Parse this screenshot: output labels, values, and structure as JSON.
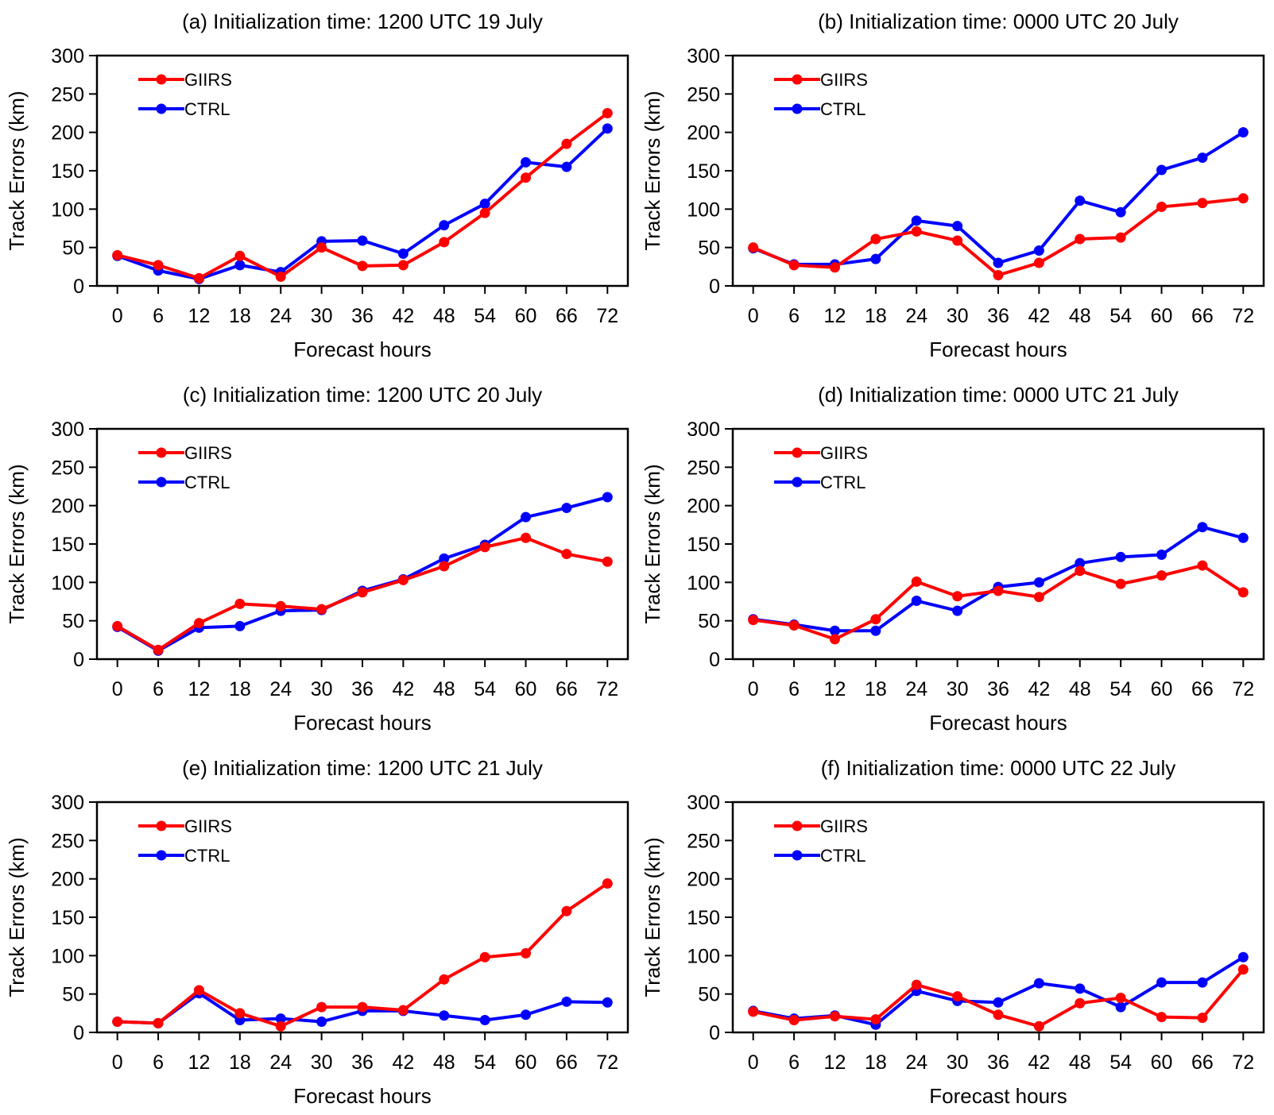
{
  "colors": {
    "GIIRS": "#ff0000",
    "CTRL": "#0000ff"
  },
  "chart_data": [
    {
      "type": "line",
      "title": "(a) Initialization time: 1200 UTC 19 July",
      "xlabel": "Forecast hours",
      "ylabel": "Track Errors (km)",
      "x": [
        0,
        6,
        12,
        18,
        24,
        30,
        36,
        42,
        48,
        54,
        60,
        66,
        72
      ],
      "xlim": [
        -3,
        75
      ],
      "ylim": [
        0,
        300
      ],
      "yticks": [
        0,
        50,
        100,
        150,
        200,
        250,
        300
      ],
      "legend": "top-left",
      "series": [
        {
          "name": "GIIRS",
          "values": [
            40,
            27,
            10,
            39,
            12,
            50,
            26,
            27,
            57,
            95,
            141,
            185,
            225
          ]
        },
        {
          "name": "CTRL",
          "values": [
            39,
            20,
            9,
            27,
            18,
            58,
            59,
            42,
            79,
            107,
            161,
            155,
            205
          ]
        }
      ]
    },
    {
      "type": "line",
      "title": "(b) Initialization time: 0000 UTC 20 July",
      "xlabel": "Forecast hours",
      "ylabel": "Track Errors (km)",
      "x": [
        0,
        6,
        12,
        18,
        24,
        30,
        36,
        42,
        48,
        54,
        60,
        66,
        72
      ],
      "xlim": [
        -3,
        75
      ],
      "ylim": [
        0,
        300
      ],
      "yticks": [
        0,
        50,
        100,
        150,
        200,
        250,
        300
      ],
      "legend": "top-left",
      "series": [
        {
          "name": "GIIRS",
          "values": [
            50,
            27,
            24,
            61,
            71,
            59,
            14,
            30,
            61,
            63,
            103,
            108,
            114
          ]
        },
        {
          "name": "CTRL",
          "values": [
            49,
            28,
            28,
            35,
            85,
            78,
            30,
            46,
            111,
            96,
            151,
            167,
            200
          ]
        }
      ]
    },
    {
      "type": "line",
      "title": "(c) Initialization time: 1200 UTC 20 July",
      "xlabel": "Forecast hours",
      "ylabel": "Track Errors (km)",
      "x": [
        0,
        6,
        12,
        18,
        24,
        30,
        36,
        42,
        48,
        54,
        60,
        66,
        72
      ],
      "xlim": [
        -3,
        75
      ],
      "ylim": [
        0,
        300
      ],
      "yticks": [
        0,
        50,
        100,
        150,
        200,
        250,
        300
      ],
      "legend": "top-left",
      "series": [
        {
          "name": "GIIRS",
          "values": [
            43,
            12,
            47,
            72,
            69,
            65,
            87,
            103,
            121,
            146,
            158,
            137,
            127
          ]
        },
        {
          "name": "CTRL",
          "values": [
            42,
            11,
            41,
            43,
            63,
            64,
            89,
            104,
            131,
            149,
            185,
            197,
            211
          ]
        }
      ]
    },
    {
      "type": "line",
      "title": "(d) Initialization time: 0000 UTC 21 July",
      "xlabel": "Forecast hours",
      "ylabel": "Track Errors (km)",
      "x": [
        0,
        6,
        12,
        18,
        24,
        30,
        36,
        42,
        48,
        54,
        60,
        66,
        72
      ],
      "xlim": [
        -3,
        75
      ],
      "ylim": [
        0,
        300
      ],
      "yticks": [
        0,
        50,
        100,
        150,
        200,
        250,
        300
      ],
      "legend": "top-left",
      "series": [
        {
          "name": "GIIRS",
          "values": [
            51,
            44,
            26,
            52,
            101,
            82,
            89,
            81,
            115,
            98,
            109,
            122,
            87
          ]
        },
        {
          "name": "CTRL",
          "values": [
            52,
            45,
            37,
            37,
            76,
            63,
            94,
            100,
            125,
            133,
            136,
            172,
            158
          ]
        }
      ]
    },
    {
      "type": "line",
      "title": "(e) Initialization time: 1200 UTC 21 July",
      "xlabel": "Forecast hours",
      "ylabel": "Track Errors (km)",
      "x": [
        0,
        6,
        12,
        18,
        24,
        30,
        36,
        42,
        48,
        54,
        60,
        66,
        72
      ],
      "xlim": [
        -3,
        75
      ],
      "ylim": [
        0,
        300
      ],
      "yticks": [
        0,
        50,
        100,
        150,
        200,
        250,
        300
      ],
      "legend": "top-left",
      "series": [
        {
          "name": "GIIRS",
          "values": [
            14,
            12,
            55,
            25,
            8,
            33,
            33,
            29,
            69,
            98,
            103,
            158,
            194
          ]
        },
        {
          "name": "CTRL",
          "values": [
            14,
            12,
            51,
            16,
            18,
            14,
            28,
            28,
            22,
            16,
            23,
            40,
            39
          ]
        }
      ]
    },
    {
      "type": "line",
      "title": "(f) Initialization time: 0000 UTC 22 July",
      "xlabel": "Forecast hours",
      "ylabel": "Track Errors (km)",
      "x": [
        0,
        6,
        12,
        18,
        24,
        30,
        36,
        42,
        48,
        54,
        60,
        66,
        72
      ],
      "xlim": [
        -3,
        75
      ],
      "ylim": [
        0,
        300
      ],
      "yticks": [
        0,
        50,
        100,
        150,
        200,
        250,
        300
      ],
      "legend": "top-left",
      "series": [
        {
          "name": "GIIRS",
          "values": [
            27,
            16,
            21,
            17,
            62,
            47,
            23,
            8,
            38,
            45,
            20,
            19,
            82
          ]
        },
        {
          "name": "CTRL",
          "values": [
            28,
            18,
            22,
            10,
            54,
            41,
            39,
            64,
            57,
            33,
            65,
            65,
            98
          ]
        }
      ]
    }
  ]
}
